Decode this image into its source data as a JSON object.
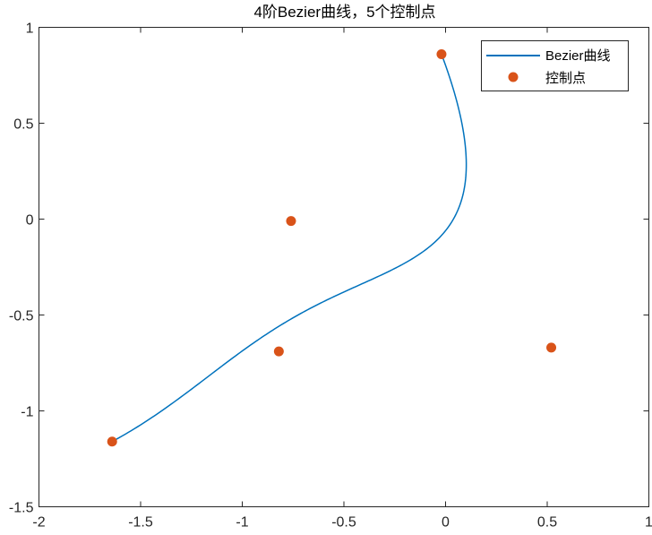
{
  "chart_data": {
    "type": "line",
    "title": "4阶Bezier曲线，5个控制点",
    "xlabel": "",
    "ylabel": "",
    "xlim": [
      -2,
      1
    ],
    "ylim": [
      -1.5,
      1
    ],
    "xticks": [
      -2,
      -1.5,
      -1,
      -0.5,
      0,
      0.5,
      1
    ],
    "yticks": [
      -1.5,
      -1,
      -0.5,
      0,
      0.5,
      1
    ],
    "xtick_labels": [
      "-2",
      "-1.5",
      "-1",
      "-0.5",
      "0",
      "0.5",
      "1"
    ],
    "ytick_labels": [
      "-1.5",
      "-1",
      "-0.5",
      "0",
      "0.5",
      "1"
    ],
    "grid": false,
    "legend_position": "top-right",
    "series": [
      {
        "name": "Bezier曲线",
        "kind": "bezier-curve",
        "color": "#0072BD"
      },
      {
        "name": "控制点",
        "kind": "scatter",
        "color": "#D95319",
        "points": [
          {
            "x": -1.64,
            "y": -1.16
          },
          {
            "x": -0.82,
            "y": -0.69
          },
          {
            "x": -0.76,
            "y": -0.01
          },
          {
            "x": 0.52,
            "y": -0.67
          },
          {
            "x": -0.02,
            "y": 0.86
          }
        ]
      }
    ]
  }
}
